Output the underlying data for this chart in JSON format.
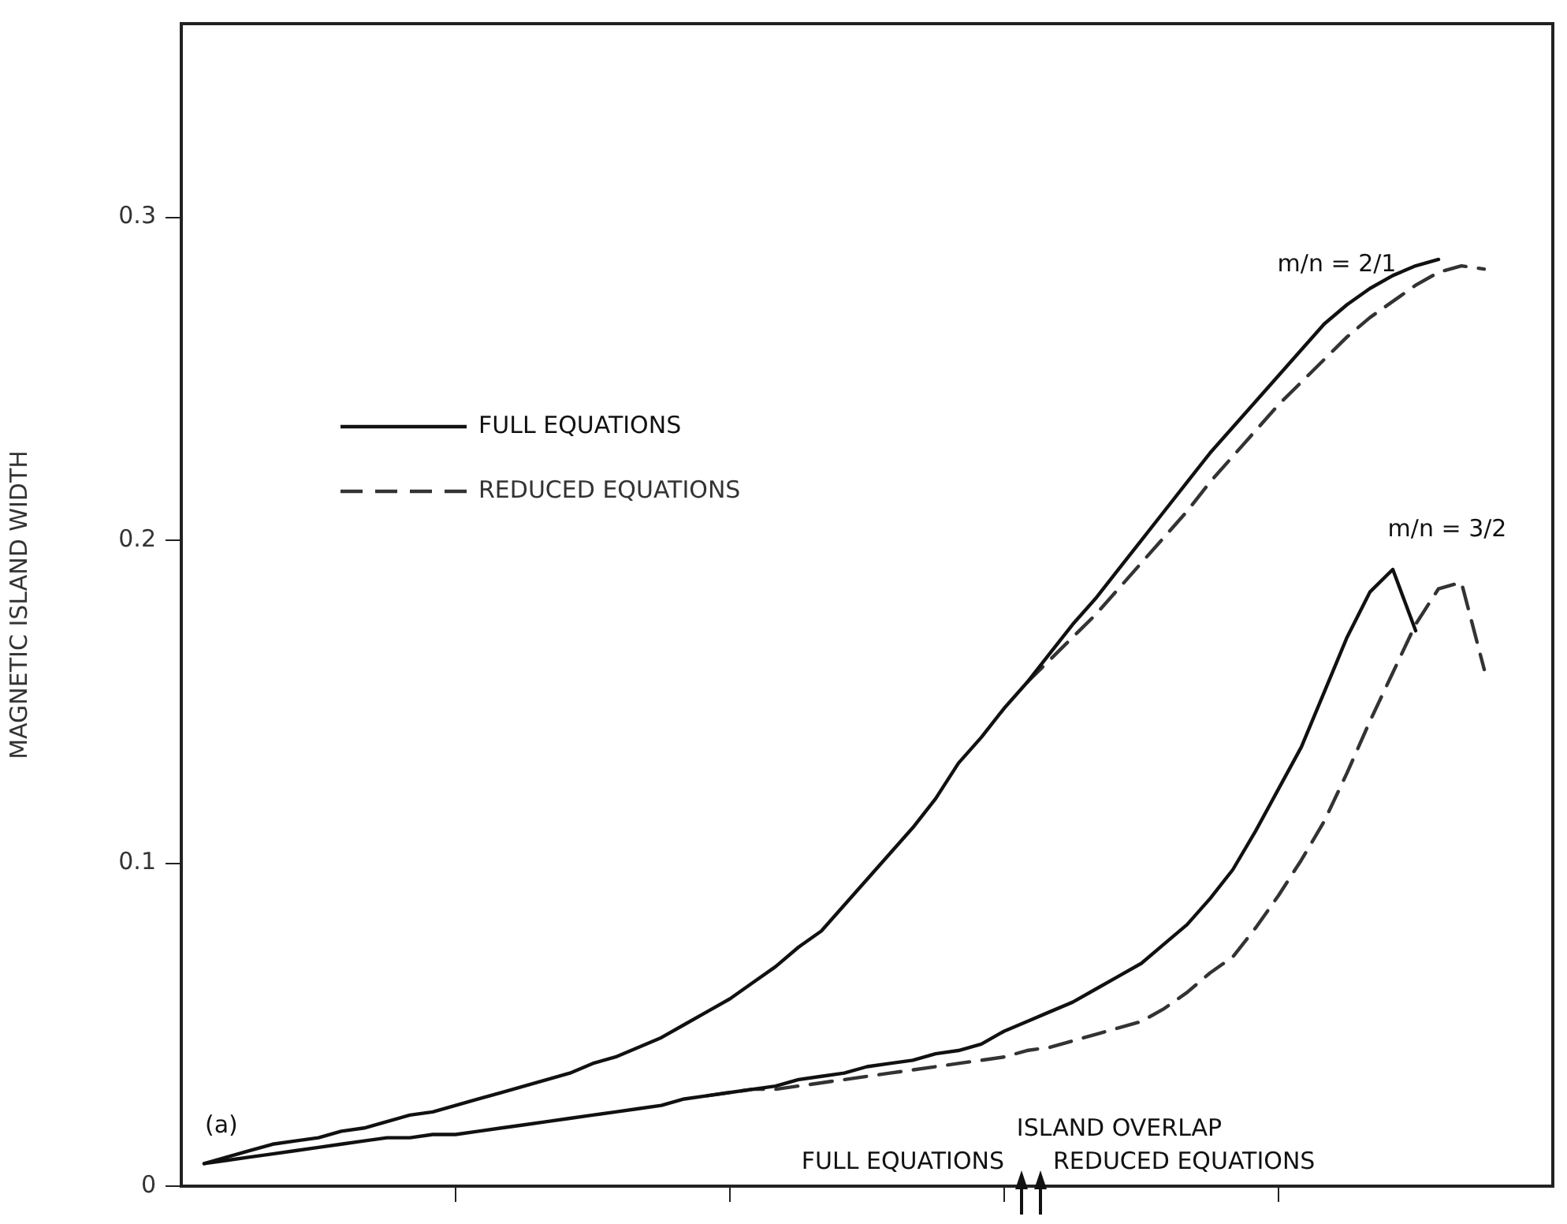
{
  "chart_data": {
    "type": "line",
    "ylabel": "MAGNETIC ISLAND WIDTH",
    "categories": [
      null,
      null,
      null,
      null,
      null,
      null,
      null,
      null,
      null,
      null,
      null,
      null,
      null,
      null,
      null,
      null,
      null,
      null,
      null,
      null,
      null,
      null,
      null,
      null,
      null,
      null,
      null,
      null,
      null,
      null,
      null,
      null,
      null,
      null,
      null,
      null,
      null,
      null,
      null,
      null,
      null,
      null,
      null,
      null,
      null,
      null,
      null,
      null,
      null,
      null,
      null,
      null,
      null,
      null,
      null,
      null,
      null,
      null,
      null,
      null,
      null
    ],
    "ylim": [
      0,
      0.36
    ],
    "yticks": [
      0,
      0.1,
      0.2,
      0.3
    ],
    "grid": false,
    "legend": "top left",
    "marker": "none",
    "series": [
      {
        "name": "FULL EQUATIONS",
        "color": "#111111",
        "line_style": "solid",
        "values": [
          null,
          0.007,
          0.009,
          0.011,
          0.013,
          0.014,
          0.015,
          0.017,
          0.018,
          0.02,
          0.022,
          0.023,
          0.025,
          0.027,
          0.029,
          0.031,
          0.033,
          0.035,
          0.038,
          0.04,
          0.043,
          0.046,
          0.05,
          0.054,
          0.058,
          0.063,
          0.068,
          0.074,
          0.079,
          0.087,
          0.095,
          0.103,
          0.111,
          0.12,
          0.131,
          0.139,
          0.148,
          0.156,
          0.165,
          0.174,
          0.182,
          0.191,
          0.2,
          0.209,
          0.218,
          0.227,
          0.235,
          0.243,
          0.251,
          0.259,
          0.267,
          0.273,
          0.278,
          0.282,
          0.285,
          0.287,
          null,
          null,
          null,
          null,
          null
        ]
      },
      {
        "name": "REDUCED EQUATIONS",
        "color": "#333333",
        "line_style": "dashed",
        "values": [
          null,
          null,
          null,
          null,
          null,
          null,
          null,
          null,
          null,
          null,
          null,
          null,
          null,
          null,
          null,
          null,
          null,
          null,
          null,
          null,
          null,
          null,
          null,
          null,
          null,
          null,
          null,
          null,
          null,
          null,
          null,
          null,
          null,
          null,
          null,
          null,
          null,
          0.156,
          0.163,
          0.17,
          0.177,
          0.185,
          0.193,
          0.201,
          0.209,
          0.218,
          0.226,
          0.234,
          0.242,
          0.249,
          0.256,
          0.263,
          0.269,
          0.274,
          0.279,
          0.283,
          0.285,
          0.284,
          null,
          null,
          null
        ]
      },
      {
        "color": "#111111",
        "line_style": "solid",
        "values": [
          null,
          0.007,
          0.008,
          0.009,
          0.01,
          0.011,
          0.012,
          0.013,
          0.014,
          0.015,
          0.015,
          0.016,
          0.016,
          0.017,
          0.018,
          0.019,
          0.02,
          0.021,
          0.022,
          0.023,
          0.024,
          0.025,
          0.027,
          0.028,
          0.029,
          0.03,
          0.031,
          0.033,
          0.034,
          0.035,
          0.037,
          0.038,
          0.039,
          0.041,
          0.042,
          0.044,
          0.048,
          0.051,
          0.054,
          0.057,
          0.061,
          0.065,
          0.069,
          0.075,
          0.081,
          0.089,
          0.098,
          0.11,
          0.123,
          0.136,
          0.153,
          0.17,
          0.184,
          0.191,
          0.172,
          null,
          null,
          null,
          null,
          null,
          null
        ]
      },
      {
        "color": "#333333",
        "line_style": "dashed",
        "values": [
          null,
          null,
          null,
          null,
          null,
          null,
          null,
          null,
          null,
          null,
          null,
          null,
          null,
          null,
          null,
          null,
          null,
          null,
          null,
          null,
          null,
          null,
          null,
          0.028,
          0.029,
          0.03,
          0.03,
          0.031,
          0.032,
          0.033,
          0.034,
          0.035,
          0.036,
          0.037,
          0.038,
          0.039,
          0.04,
          0.042,
          0.043,
          0.045,
          0.047,
          0.049,
          0.051,
          0.055,
          0.06,
          0.066,
          0.071,
          0.08,
          0.09,
          0.101,
          0.113,
          0.128,
          0.144,
          0.159,
          0.174,
          0.185,
          0.187,
          0.16,
          null,
          null,
          null
        ]
      }
    ],
    "annotations": [
      "m/n = 2/1",
      "m/n = 3/2",
      "(a)",
      "ISLAND OVERLAP",
      "FULL EQUATIONS",
      "REDUCED EQUATIONS"
    ]
  }
}
